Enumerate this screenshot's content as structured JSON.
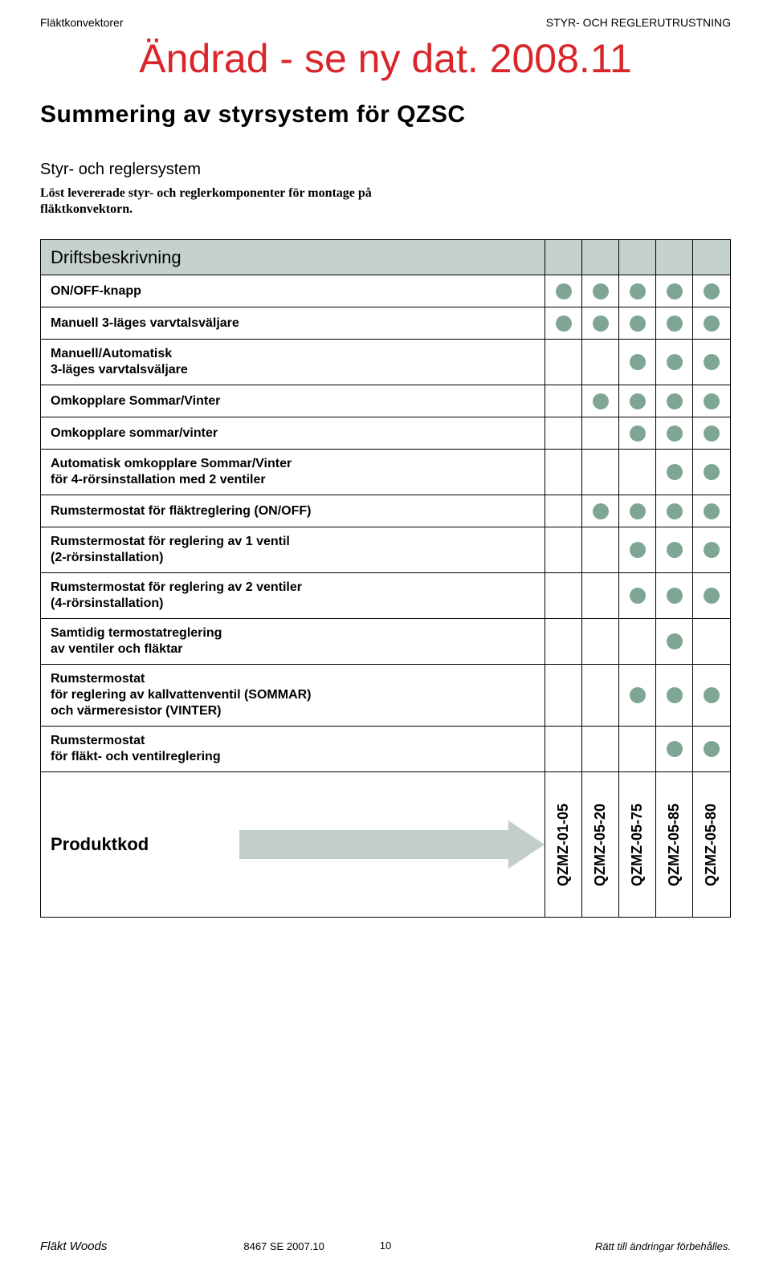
{
  "header": {
    "left": "Fläktkonvektorer",
    "right": "STYR- OCH REGLERUTRUSTNING"
  },
  "banner": "Ändrad - se ny dat. 2008.11",
  "title": "Summering av styrsystem för QZSC",
  "subhead": "Styr- och reglersystem",
  "intro": "Löst levererade styr- och reglerkomponenter för montage på fläktkonvektorn.",
  "table": {
    "title": "Driftsbeskrivning",
    "dot_color": "#7ea693",
    "columns": [
      "QZMZ-01-05",
      "QZMZ-05-20",
      "QZMZ-05-75",
      "QZMZ-05-85",
      "QZMZ-05-80"
    ],
    "rows": [
      {
        "label": "ON/OFF-knapp",
        "dots": [
          1,
          1,
          1,
          1,
          1
        ]
      },
      {
        "label": "Manuell 3-läges varvtalsväljare",
        "dots": [
          1,
          1,
          1,
          1,
          1
        ]
      },
      {
        "label": "Manuell/Automatisk\n3-läges varvtalsväljare",
        "dots": [
          0,
          0,
          1,
          1,
          1
        ]
      },
      {
        "label": "Omkopplare Sommar/Vinter",
        "dots": [
          0,
          1,
          1,
          1,
          1
        ]
      },
      {
        "label": "Omkopplare sommar/vinter",
        "dots": [
          0,
          0,
          1,
          1,
          1
        ]
      },
      {
        "label": "Automatisk omkopplare Sommar/Vinter\nför 4-rörsinstallation med 2 ventiler",
        "dots": [
          0,
          0,
          0,
          1,
          1
        ]
      },
      {
        "label": "Rumstermostat för fläktreglering (ON/OFF)",
        "dots": [
          0,
          1,
          1,
          1,
          1
        ]
      },
      {
        "label": "Rumstermostat för reglering av 1 ventil\n(2-rörsinstallation)",
        "dots": [
          0,
          0,
          1,
          1,
          1
        ]
      },
      {
        "label": "Rumstermostat för reglering av 2 ventiler\n(4-rörsinstallation)",
        "dots": [
          0,
          0,
          1,
          1,
          1
        ]
      },
      {
        "label": "Samtidig termostatreglering\nav ventiler och fläktar",
        "dots": [
          0,
          0,
          0,
          1,
          0
        ]
      },
      {
        "label": "Rumstermostat\nför reglering av kallvattenventil (SOMMAR)\noch värmeresistor (VINTER)",
        "dots": [
          0,
          0,
          1,
          1,
          1
        ]
      },
      {
        "label": "Rumstermostat\nför fläkt- och ventilreglering",
        "dots": [
          0,
          0,
          0,
          1,
          1
        ]
      }
    ],
    "product_label": "Produktkod"
  },
  "footer": {
    "left": "Fläkt Woods",
    "mid": "8467 SE 2007.10",
    "page": "10",
    "right": "Rätt till ändringar förbehålles."
  },
  "colors": {
    "red": "#d9262a",
    "dot": "#7ea693",
    "header_bg": "#c5d1cd",
    "arrow_fill": "#c1cec9"
  }
}
